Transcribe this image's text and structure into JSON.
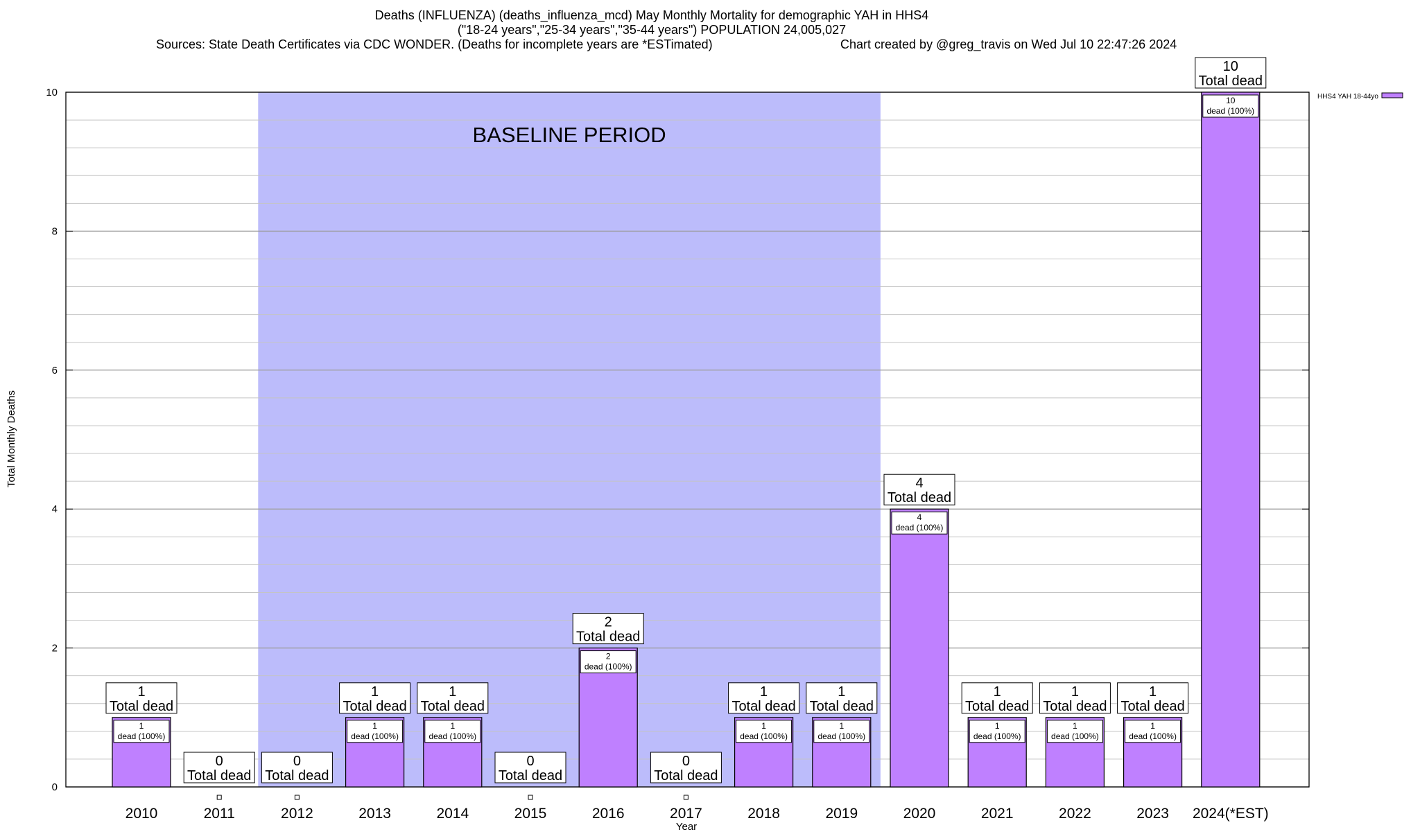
{
  "header": {
    "title_line1": "Deaths (INFLUENZA) (deaths_influenza_mcd) May Monthly Mortality for demographic YAH in HHS4",
    "title_line2": "(\"18-24 years\",\"25-34 years\",\"35-44 years\") POPULATION 24,005,027",
    "sources": "Sources: State Death Certificates via CDC WONDER. (Deaths for incomplete years are *ESTimated)",
    "credit": "Chart created by @greg_travis on Wed Jul 10 22:47:26 2024"
  },
  "chart_data": {
    "type": "bar",
    "xlabel": "Year",
    "ylabel": "Total Monthly Deaths",
    "ylim": [
      0,
      10
    ],
    "y_ticks": [
      0,
      2,
      4,
      6,
      8,
      10
    ],
    "grid": true,
    "legend_position": "top-right",
    "categories": [
      "2010",
      "2011",
      "2012",
      "2013",
      "2014",
      "2015",
      "2016",
      "2017",
      "2018",
      "2019",
      "2020",
      "2021",
      "2022",
      "2023",
      "2024(*EST)"
    ],
    "series": [
      {
        "name": "HHS4 YAH 18-44yo",
        "color": "#bf80ff",
        "values": [
          1,
          0,
          0,
          1,
          1,
          0,
          2,
          0,
          1,
          1,
          4,
          1,
          1,
          1,
          10
        ]
      }
    ],
    "total_label": "Total dead",
    "inner_label_suffix": "dead (100%)",
    "baseline": {
      "label": "BASELINE PERIOD",
      "from": "2012",
      "to": "2019",
      "color": "#bcbcfb"
    }
  }
}
